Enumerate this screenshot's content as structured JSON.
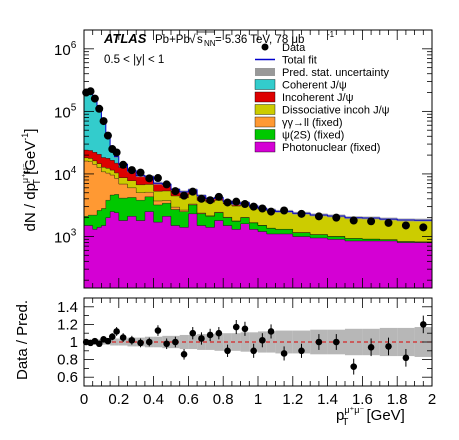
{
  "chart_data": [
    {
      "type": "area",
      "panel": "main",
      "experiment": "ATLAS",
      "collision": "Pb+Pb",
      "sqrt_snn": "s",
      "sqrt_snn_sub": "NN",
      "energy_text": " = 5.36 TeV, 78 μb",
      "lumi_exp": "-1",
      "rapidity_label": "0.5 < |y| < 1",
      "ylabel": "dN / dp",
      "ylabel_sup": "μ⁺μ⁻",
      "ylabel_sub": "T",
      "ylabel_unit": " [GeV",
      "ylabel_unit_exp": "-1",
      "ylabel_close": "]",
      "yscale": "log",
      "ylim": [
        150,
        2000000
      ],
      "xlim": [
        0,
        2
      ],
      "yticks": [
        {
          "value": 1000,
          "base": "10",
          "exp": "3"
        },
        {
          "value": 10000,
          "base": "10",
          "exp": "4"
        },
        {
          "value": 100000,
          "base": "10",
          "exp": "5"
        },
        {
          "value": 1000000,
          "base": "10",
          "exp": "6"
        }
      ],
      "x_bin_edges": [
        0,
        0.025,
        0.05,
        0.075,
        0.1,
        0.125,
        0.15,
        0.175,
        0.2,
        0.25,
        0.3,
        0.35,
        0.4,
        0.45,
        0.5,
        0.55,
        0.6,
        0.65,
        0.7,
        0.75,
        0.8,
        0.85,
        0.9,
        0.95,
        1.0,
        1.05,
        1.1,
        1.2,
        1.3,
        1.4,
        1.5,
        1.6,
        1.7,
        1.8,
        1.9,
        2.0
      ],
      "stack": [
        {
          "name": "Photonuclear (fixed)",
          "color": "#d400d4",
          "values": [
            1500,
            1500,
            1300,
            1400,
            1500,
            2000,
            2500,
            2400,
            1800,
            2100,
            1800,
            2500,
            1700,
            2100,
            1500,
            1400,
            2300,
            1500,
            1400,
            1800,
            1500,
            1300,
            1600,
            1300,
            1200,
            1100,
            1100,
            1000,
            950,
            900,
            850,
            850,
            850,
            800,
            800
          ]
        },
        {
          "name": "ψ(2S) (fixed)",
          "color": "#00c800",
          "values": [
            600,
            700,
            900,
            1200,
            1300,
            1800,
            2100,
            2300,
            2300,
            2100,
            2000,
            1800,
            1500,
            1300,
            1200,
            1100,
            900,
            800,
            700,
            600,
            500,
            450,
            400,
            350,
            300,
            250,
            200,
            150,
            120,
            100,
            80,
            60,
            40,
            30,
            20
          ]
        },
        {
          "name": "γγ→ll (fixed)",
          "color": "#ff9933",
          "values": [
            14000,
            13500,
            12000,
            10000,
            8000,
            6500,
            5000,
            3800,
            2800,
            1800,
            1200,
            800,
            500,
            350,
            250,
            150,
            100,
            70,
            50,
            40,
            30,
            25,
            20,
            15,
            10,
            10,
            8,
            6,
            5,
            4,
            3,
            2,
            2,
            1,
            1
          ]
        },
        {
          "name": "Dissociative incoh J/ψ",
          "color": "#cccc00",
          "values": [
            2000,
            2000,
            2000,
            2000,
            2000,
            2000,
            1900,
            1900,
            1800,
            1800,
            1700,
            1700,
            1600,
            1600,
            1500,
            1500,
            1450,
            1400,
            1400,
            1350,
            1300,
            1300,
            1250,
            1250,
            1200,
            1200,
            1150,
            1150,
            1100,
            1100,
            1050,
            1050,
            1000,
            1000,
            1000
          ]
        },
        {
          "name": "Incoherent J/ψ",
          "color": "#dd0000",
          "values": [
            6000,
            6000,
            6000,
            6000,
            5500,
            5500,
            5000,
            4500,
            4000,
            3000,
            2600,
            2200,
            1800,
            1500,
            1200,
            1000,
            800,
            700,
            500,
            400,
            300,
            250,
            200,
            150,
            100,
            80,
            60,
            40,
            30,
            20,
            10,
            8,
            5,
            3,
            2
          ]
        },
        {
          "name": "Coherent J/ψ",
          "color": "#33cccc",
          "values": [
            160000,
            190000,
            140000,
            90000,
            50000,
            24000,
            10000,
            4000,
            1500,
            400,
            100,
            30,
            10,
            3,
            1,
            0,
            0,
            0,
            0,
            0,
            0,
            0,
            0,
            0,
            0,
            0,
            0,
            0,
            0,
            0,
            0,
            0,
            0,
            0,
            0
          ]
        }
      ],
      "data_points": [
        {
          "x": 0.0125,
          "y": 200000
        },
        {
          "x": 0.0375,
          "y": 210000
        },
        {
          "x": 0.0625,
          "y": 160000
        },
        {
          "x": 0.0875,
          "y": 110000
        },
        {
          "x": 0.1125,
          "y": 70000
        },
        {
          "x": 0.1375,
          "y": 41000
        },
        {
          "x": 0.1625,
          "y": 25000
        },
        {
          "x": 0.1875,
          "y": 22000
        },
        {
          "x": 0.225,
          "y": 14000
        },
        {
          "x": 0.275,
          "y": 11500
        },
        {
          "x": 0.325,
          "y": 10500
        },
        {
          "x": 0.375,
          "y": 8500
        },
        {
          "x": 0.425,
          "y": 8600
        },
        {
          "x": 0.475,
          "y": 6800
        },
        {
          "x": 0.525,
          "y": 5300
        },
        {
          "x": 0.575,
          "y": 4500
        },
        {
          "x": 0.625,
          "y": 5200
        },
        {
          "x": 0.675,
          "y": 4000
        },
        {
          "x": 0.725,
          "y": 3800
        },
        {
          "x": 0.775,
          "y": 4300
        },
        {
          "x": 0.825,
          "y": 3500
        },
        {
          "x": 0.875,
          "y": 3600
        },
        {
          "x": 0.925,
          "y": 3300
        },
        {
          "x": 0.975,
          "y": 3000
        },
        {
          "x": 1.025,
          "y": 2800
        },
        {
          "x": 1.075,
          "y": 2500
        },
        {
          "x": 1.15,
          "y": 2600
        },
        {
          "x": 1.25,
          "y": 2300
        },
        {
          "x": 1.35,
          "y": 2100
        },
        {
          "x": 1.45,
          "y": 2000
        },
        {
          "x": 1.55,
          "y": 1800
        },
        {
          "x": 1.65,
          "y": 1750
        },
        {
          "x": 1.75,
          "y": 1650
        },
        {
          "x": 1.85,
          "y": 1500
        },
        {
          "x": 1.95,
          "y": 1400
        }
      ],
      "legend": {
        "placement": "top-right",
        "entries": [
          {
            "label": "Data",
            "kind": "marker"
          },
          {
            "label": "Total fit",
            "kind": "line",
            "color": "#0000cc"
          },
          {
            "label": "Pred. stat. uncertainty",
            "kind": "hatch"
          },
          {
            "label": "Coherent J/ψ",
            "kind": "box",
            "color": "#33cccc"
          },
          {
            "label": "Incoherent J/ψ",
            "kind": "box",
            "color": "#dd0000"
          },
          {
            "label": "Dissociative incoh J/ψ",
            "kind": "box",
            "color": "#cccc00"
          },
          {
            "label": "γγ→ll (fixed)",
            "kind": "box",
            "color": "#ff9933"
          },
          {
            "label": "ψ(2S) (fixed)",
            "kind": "box",
            "color": "#00c800"
          },
          {
            "label": "Photonuclear (fixed)",
            "kind": "box",
            "color": "#d400d4"
          }
        ]
      }
    },
    {
      "type": "scatter",
      "panel": "ratio",
      "ylabel": "Data / Pred.",
      "xlabel": "p",
      "xlabel_sup": "μ⁺μ⁻",
      "xlabel_sub": "T",
      "xlabel_unit": " [GeV]",
      "xlim": [
        0,
        2
      ],
      "ylim": [
        0.5,
        1.5
      ],
      "xticks": [
        "0",
        "0.2",
        "0.4",
        "0.6",
        "0.8",
        "1",
        "1.2",
        "1.4",
        "1.6",
        "1.8",
        "2"
      ],
      "yticks": [
        "0.6",
        "0.8",
        "1",
        "1.2",
        "1.4"
      ],
      "reference_line": {
        "y": 1.0,
        "color": "#dd0000",
        "style": "dashed"
      },
      "band_halfwidth": [
        0.02,
        0.02,
        0.03,
        0.03,
        0.03,
        0.03,
        0.04,
        0.04,
        0.04,
        0.05,
        0.05,
        0.06,
        0.06,
        0.07,
        0.07,
        0.08,
        0.08,
        0.09,
        0.09,
        0.1,
        0.1,
        0.1,
        0.11,
        0.11,
        0.12,
        0.12,
        0.13,
        0.13,
        0.14,
        0.14,
        0.15,
        0.15,
        0.16,
        0.16,
        0.17
      ],
      "points": [
        {
          "x": 0.0125,
          "y": 1.0,
          "err": 0.02
        },
        {
          "x": 0.0375,
          "y": 0.99,
          "err": 0.02
        },
        {
          "x": 0.0625,
          "y": 1.01,
          "err": 0.02
        },
        {
          "x": 0.0875,
          "y": 0.98,
          "err": 0.03
        },
        {
          "x": 0.1125,
          "y": 1.03,
          "err": 0.03
        },
        {
          "x": 0.1375,
          "y": 1.01,
          "err": 0.03
        },
        {
          "x": 0.1625,
          "y": 1.06,
          "err": 0.04
        },
        {
          "x": 0.1875,
          "y": 1.12,
          "err": 0.05
        },
        {
          "x": 0.225,
          "y": 1.05,
          "err": 0.05
        },
        {
          "x": 0.275,
          "y": 1.02,
          "err": 0.05
        },
        {
          "x": 0.325,
          "y": 0.99,
          "err": 0.05
        },
        {
          "x": 0.375,
          "y": 1.0,
          "err": 0.05
        },
        {
          "x": 0.425,
          "y": 1.13,
          "err": 0.06
        },
        {
          "x": 0.475,
          "y": 0.98,
          "err": 0.06
        },
        {
          "x": 0.525,
          "y": 1.0,
          "err": 0.06
        },
        {
          "x": 0.575,
          "y": 0.86,
          "err": 0.06
        },
        {
          "x": 0.625,
          "y": 1.1,
          "err": 0.07
        },
        {
          "x": 0.675,
          "y": 1.04,
          "err": 0.07
        },
        {
          "x": 0.725,
          "y": 1.08,
          "err": 0.07
        },
        {
          "x": 0.775,
          "y": 1.1,
          "err": 0.07
        },
        {
          "x": 0.825,
          "y": 0.9,
          "err": 0.07
        },
        {
          "x": 0.875,
          "y": 1.17,
          "err": 0.08
        },
        {
          "x": 0.925,
          "y": 1.15,
          "err": 0.08
        },
        {
          "x": 0.975,
          "y": 0.9,
          "err": 0.08
        },
        {
          "x": 1.025,
          "y": 1.02,
          "err": 0.08
        },
        {
          "x": 1.075,
          "y": 1.12,
          "err": 0.08
        },
        {
          "x": 1.15,
          "y": 0.87,
          "err": 0.08
        },
        {
          "x": 1.25,
          "y": 0.9,
          "err": 0.08
        },
        {
          "x": 1.35,
          "y": 1.0,
          "err": 0.09
        },
        {
          "x": 1.45,
          "y": 1.0,
          "err": 0.09
        },
        {
          "x": 1.55,
          "y": 0.72,
          "err": 0.09
        },
        {
          "x": 1.65,
          "y": 0.94,
          "err": 0.1
        },
        {
          "x": 1.75,
          "y": 0.95,
          "err": 0.1
        },
        {
          "x": 1.85,
          "y": 0.82,
          "err": 0.1
        },
        {
          "x": 1.95,
          "y": 1.2,
          "err": 0.1
        }
      ]
    }
  ]
}
